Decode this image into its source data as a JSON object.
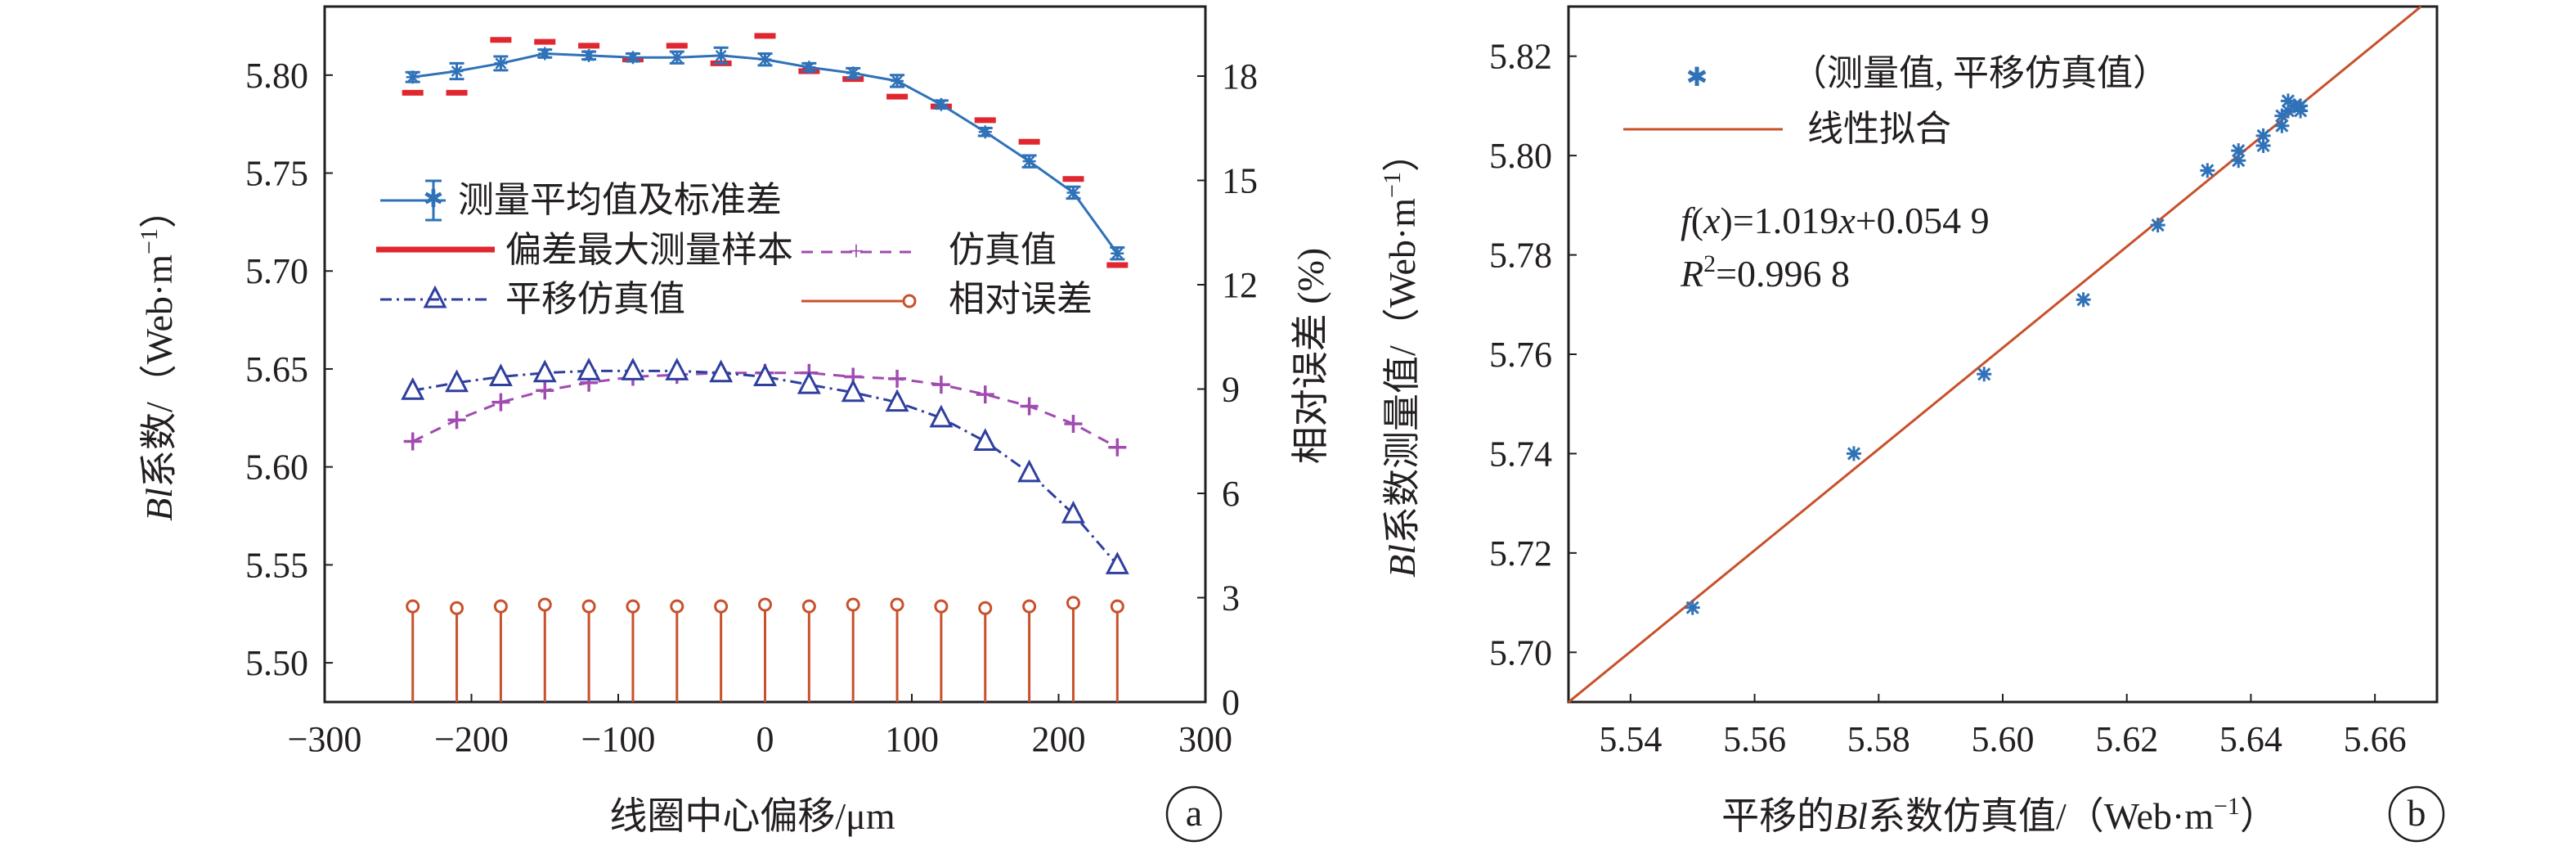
{
  "colors": {
    "measured": "#2f72b8",
    "deviation": "#e0262e",
    "simulated": "#a14bb0",
    "shifted": "#2f3f9e",
    "relative_error": "#c8512b",
    "fit_line": "#c8512b",
    "axis": "#231f20"
  },
  "chart_data": [
    {
      "type": "line",
      "panel_label": "a",
      "xlabel": "线圈中心偏移/μm",
      "ylabel_left": {
        "prefix": "Bl",
        "text": "系数/（Web·m",
        "sup": "−1",
        "suffix": "）"
      },
      "ylabel_right": "相对误差 (%)",
      "xlim": [
        -300,
        300
      ],
      "ylim_left": [
        5.48,
        5.835
      ],
      "ylim_right": [
        0,
        20
      ],
      "x_ticks": [
        "−300",
        "−200",
        "−100",
        "0",
        "100",
        "200",
        "300"
      ],
      "y_left_ticks": [
        "5.50",
        "5.55",
        "5.60",
        "5.65",
        "5.70",
        "5.75",
        "5.80"
      ],
      "y_right_ticks": [
        "0",
        "3",
        "6",
        "9",
        "12",
        "15",
        "18"
      ],
      "x": [
        -240,
        -210,
        -180,
        -150,
        -120,
        -90,
        -60,
        -30,
        0,
        30,
        60,
        90,
        120,
        150,
        180,
        210,
        240
      ],
      "series": [
        {
          "name": "测量平均值及标准差",
          "axis": "left",
          "values": [
            5.799,
            5.802,
            5.806,
            5.811,
            5.81,
            5.809,
            5.809,
            5.81,
            5.808,
            5.804,
            5.801,
            5.797,
            5.785,
            5.771,
            5.756,
            5.74,
            5.709
          ],
          "std": [
            0.0025,
            0.004,
            0.0035,
            0.002,
            0.002,
            0.002,
            0.003,
            0.004,
            0.003,
            0.002,
            0.0025,
            0.003,
            0.002,
            0.002,
            0.003,
            0.003,
            0.003
          ]
        },
        {
          "name": "偏差最大测量样本",
          "axis": "left",
          "upper": [
            null,
            null,
            5.818,
            5.817,
            5.815,
            null,
            5.815,
            null,
            5.82,
            null,
            null,
            null,
            null,
            5.777,
            5.766,
            5.747,
            null
          ],
          "lower": [
            5.791,
            5.791,
            null,
            null,
            null,
            5.808,
            null,
            5.806,
            null,
            5.802,
            5.798,
            5.789,
            5.784,
            null,
            null,
            null,
            5.703
          ]
        },
        {
          "name": "仿真值",
          "axis": "left",
          "values": [
            5.613,
            5.624,
            5.633,
            5.639,
            5.643,
            5.646,
            5.647,
            5.648,
            5.648,
            5.648,
            5.646,
            5.645,
            5.642,
            5.637,
            5.631,
            5.622,
            5.61
          ]
        },
        {
          "name": "平移仿真值",
          "axis": "left",
          "values": [
            5.639,
            5.643,
            5.646,
            5.648,
            5.649,
            5.649,
            5.649,
            5.648,
            5.646,
            5.642,
            5.638,
            5.633,
            5.625,
            5.613,
            5.597,
            5.576,
            5.55
          ]
        },
        {
          "name": "相对误差",
          "axis": "right",
          "values": [
            2.75,
            2.7,
            2.75,
            2.8,
            2.75,
            2.75,
            2.75,
            2.75,
            2.8,
            2.75,
            2.8,
            2.8,
            2.75,
            2.7,
            2.75,
            2.85,
            2.75
          ]
        }
      ]
    },
    {
      "type": "scatter",
      "panel_label": "b",
      "xlabel": {
        "prefix": "平移的",
        "italic": "Bl",
        "text": "系数仿真值/（Web·m",
        "sup": "−1",
        "suffix": "）"
      },
      "ylabel": {
        "prefix": "Bl",
        "text": "系数测量值/（Web·m",
        "sup": "−1",
        "suffix": "）"
      },
      "xlim": [
        5.53,
        5.67
      ],
      "ylim": [
        5.69,
        5.83
      ],
      "x_ticks": [
        "5.54",
        "5.56",
        "5.58",
        "5.60",
        "5.62",
        "5.64",
        "5.66"
      ],
      "y_ticks": [
        "5.70",
        "5.72",
        "5.74",
        "5.76",
        "5.78",
        "5.80",
        "5.82"
      ],
      "legend": [
        "（测量值, 平移仿真值）",
        "线性拟合"
      ],
      "equation": {
        "fx": "f",
        "x": "x",
        "mid": "=1.019",
        "x2": "x",
        "tail": "+0.054 9"
      },
      "r2": {
        "r": "R",
        "sup": "2",
        "val": "=0.996 8"
      },
      "points": [
        [
          5.55,
          5.709
        ],
        [
          5.576,
          5.74
        ],
        [
          5.597,
          5.756
        ],
        [
          5.613,
          5.771
        ],
        [
          5.625,
          5.786
        ],
        [
          5.633,
          5.797
        ],
        [
          5.638,
          5.799
        ],
        [
          5.638,
          5.801
        ],
        [
          5.642,
          5.802
        ],
        [
          5.642,
          5.804
        ],
        [
          5.645,
          5.806
        ],
        [
          5.645,
          5.808
        ],
        [
          5.646,
          5.809
        ],
        [
          5.647,
          5.81
        ],
        [
          5.648,
          5.809
        ],
        [
          5.648,
          5.81
        ],
        [
          5.646,
          5.811
        ]
      ],
      "fit": {
        "slope": 1.019,
        "intercept": 0.0549
      }
    }
  ]
}
